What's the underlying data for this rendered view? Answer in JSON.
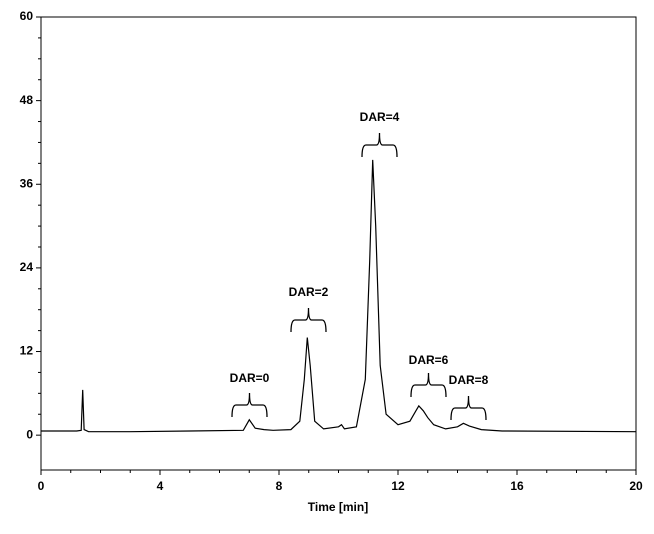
{
  "chart_data": {
    "type": "line",
    "xlabel": "Time [min]",
    "x": [
      0,
      1.2,
      1.35,
      1.4,
      1.45,
      1.6,
      3,
      5,
      6.8,
      7.0,
      7.2,
      7.5,
      7.8,
      8.4,
      8.7,
      8.85,
      8.95,
      9.05,
      9.2,
      9.5,
      10,
      10.1,
      10.2,
      10.6,
      10.9,
      11.05,
      11.15,
      11.25,
      11.4,
      11.6,
      12,
      12.4,
      12.6,
      12.7,
      12.85,
      13,
      13.2,
      13.6,
      14,
      14.2,
      14.4,
      14.8,
      15.5,
      20
    ],
    "values": [
      0.6,
      0.6,
      0.7,
      6.5,
      0.8,
      0.5,
      0.5,
      0.6,
      0.7,
      2.2,
      1.0,
      0.8,
      0.7,
      0.8,
      2,
      8,
      14,
      10,
      2,
      0.9,
      1.2,
      1.5,
      0.9,
      1.2,
      8,
      25,
      39.5,
      30,
      10,
      3,
      1.5,
      2,
      3.5,
      4.2,
      3.5,
      2.5,
      1.5,
      0.9,
      1.2,
      1.7,
      1.3,
      0.8,
      0.6,
      0.5
    ],
    "color": "#000000",
    "xlim": [
      0,
      20
    ],
    "xticks": [
      0,
      4,
      8,
      12,
      16,
      20
    ],
    "ylim": [
      -5,
      60
    ],
    "yticks": [
      0,
      12,
      24,
      36,
      48,
      60
    ],
    "annotations": [
      "DAR=0",
      "DAR=2",
      "DAR=4",
      "DAR=6",
      "DAR=8"
    ]
  }
}
